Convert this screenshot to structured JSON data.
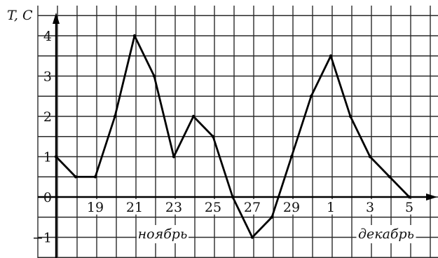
{
  "chart_data": {
    "type": "line",
    "ylabel": "T, С",
    "ylim": [
      -1.5,
      4.5
    ],
    "y_ticks": [
      "-1",
      "0",
      "1",
      "2",
      "3",
      "4"
    ],
    "x_tick_labels": [
      "19",
      "21",
      "23",
      "25",
      "27",
      "29",
      "1",
      "3",
      "5"
    ],
    "months": [
      "ноябрь",
      "декабрь"
    ],
    "x_days": [
      "17 Nov",
      "18 Nov",
      "19 Nov",
      "20 Nov",
      "21 Nov",
      "22 Nov",
      "23 Nov",
      "24 Nov",
      "25 Nov",
      "26 Nov",
      "27 Nov",
      "28 Nov",
      "29 Nov",
      "30 Nov",
      "1 Dec",
      "2 Dec",
      "3 Dec",
      "4 Dec",
      "5 Dec"
    ],
    "series": [
      {
        "values": [
          1,
          0.5,
          0.5,
          2,
          4,
          3,
          1,
          2,
          1.5,
          0,
          -1,
          -0.5,
          1,
          2.5,
          3.5,
          2,
          1,
          0.5,
          0
        ]
      }
    ],
    "grid": true
  }
}
